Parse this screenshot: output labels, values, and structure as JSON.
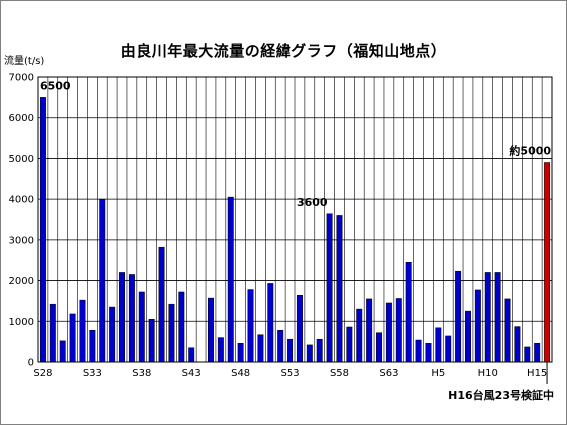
{
  "chart_data": {
    "type": "bar",
    "title": "由良川年最大流量の経緯グラフ（福知山地点）",
    "ylabel": "流量(t/s)",
    "ylim": [
      0,
      7000
    ],
    "yticks": [
      0,
      1000,
      2000,
      3000,
      4000,
      5000,
      6000,
      7000
    ],
    "grid": "vertical-and-horizontal",
    "x_tick_labels": [
      {
        "index": 0,
        "label": "S28"
      },
      {
        "index": 5,
        "label": "S33"
      },
      {
        "index": 10,
        "label": "S38"
      },
      {
        "index": 15,
        "label": "S43"
      },
      {
        "index": 20,
        "label": "S48"
      },
      {
        "index": 25,
        "label": "S53"
      },
      {
        "index": 30,
        "label": "S58"
      },
      {
        "index": 35,
        "label": "S63"
      },
      {
        "index": 40,
        "label": "H5"
      },
      {
        "index": 45,
        "label": "H10"
      },
      {
        "index": 50,
        "label": "H15"
      }
    ],
    "values": [
      6500,
      1420,
      520,
      1180,
      1520,
      780,
      4000,
      1350,
      2200,
      2150,
      1720,
      1050,
      2820,
      1420,
      1720,
      350,
      null,
      1570,
      600,
      4050,
      460,
      1780,
      670,
      1930,
      780,
      560,
      1640,
      420,
      560,
      3640,
      3600,
      860,
      1300,
      1550,
      720,
      1450,
      1560,
      2450,
      540,
      460,
      840,
      640,
      2230,
      1250,
      1770,
      2200,
      2200,
      1550,
      870,
      370,
      460,
      4900
    ],
    "highlight": {
      "index": 51,
      "color": "#cc0000"
    },
    "bar_color": "#0000cc",
    "annotations": [
      {
        "index": 0,
        "text": "6500"
      },
      {
        "index": 29,
        "text": "3600"
      },
      {
        "index": 51,
        "text": "約5000"
      }
    ],
    "callout": "H16台風23号検証中"
  }
}
